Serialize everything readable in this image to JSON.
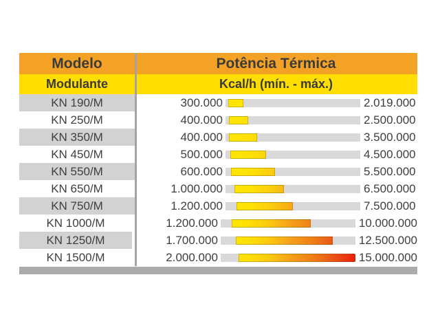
{
  "table": {
    "header": {
      "col1_title": "Modelo",
      "col1_subtitle": "Modulante",
      "col2_title": "Potência Térmica",
      "col2_subtitle": "Kcal/h (mín. - máx.)"
    },
    "scale_max": 15000000,
    "rows": [
      {
        "model": "KN 190/M",
        "min_label": "300.000",
        "max_label": "2.019.000",
        "min": 300000,
        "max": 2019000
      },
      {
        "model": "KN 250/M",
        "min_label": "400.000",
        "max_label": "2.500.000",
        "min": 400000,
        "max": 2500000
      },
      {
        "model": "KN 350/M",
        "min_label": "400.000",
        "max_label": "3.500.000",
        "min": 400000,
        "max": 3500000
      },
      {
        "model": "KN 450/M",
        "min_label": "500.000",
        "max_label": "4.500.000",
        "min": 500000,
        "max": 4500000
      },
      {
        "model": "KN 550/M",
        "min_label": "600.000",
        "max_label": "5.500.000",
        "min": 600000,
        "max": 5500000
      },
      {
        "model": "KN 650/M",
        "min_label": "1.000.000",
        "max_label": "6.500.000",
        "min": 1000000,
        "max": 6500000
      },
      {
        "model": "KN 750/M",
        "min_label": "1.200.000",
        "max_label": "7.500.000",
        "min": 1200000,
        "max": 7500000
      },
      {
        "model": "KN 1000/M",
        "min_label": "1.200.000",
        "max_label": "10.000.000",
        "min": 1200000,
        "max": 10000000
      },
      {
        "model": "KN 1250/M",
        "min_label": "1.700.000",
        "max_label": "12.500.000",
        "min": 1700000,
        "max": 12500000
      },
      {
        "model": "KN 1500/M",
        "min_label": "2.000.000",
        "max_label": "15.000.000",
        "min": 2000000,
        "max": 15000000
      }
    ]
  },
  "colors": {
    "header_orange": "#F4A226",
    "header_yellow": "#FFDE00",
    "row_alt_gray": "#D2D2D2",
    "track_gray": "#D9D9D9",
    "divider_gray": "#A3A3A3",
    "footer_bar_gray": "#ABABAB",
    "text_dark": "#3B3B3B",
    "bar_gradient": [
      "#FFE602",
      "#F5A01C",
      "#EA1D0C"
    ]
  },
  "chart_data": {
    "type": "bar",
    "orientation": "horizontal",
    "title": "Potência Térmica",
    "subtitle": "Kcal/h (mín. - máx.)",
    "xlabel": "Kcal/h",
    "ylabel": "Modelo Modulante",
    "xlim": [
      0,
      15000000
    ],
    "grid": false,
    "legend_position": "none",
    "categories": [
      "KN 190/M",
      "KN 250/M",
      "KN 350/M",
      "KN 450/M",
      "KN 550/M",
      "KN 650/M",
      "KN 750/M",
      "KN 1000/M",
      "KN 1250/M",
      "KN 1500/M"
    ],
    "series": [
      {
        "name": "mínimo",
        "values": [
          300000,
          400000,
          400000,
          500000,
          600000,
          1000000,
          1200000,
          1200000,
          1700000,
          2000000
        ]
      },
      {
        "name": "máximo",
        "values": [
          2019000,
          2500000,
          3500000,
          4500000,
          5500000,
          6500000,
          7500000,
          10000000,
          12500000,
          15000000
        ]
      }
    ]
  }
}
